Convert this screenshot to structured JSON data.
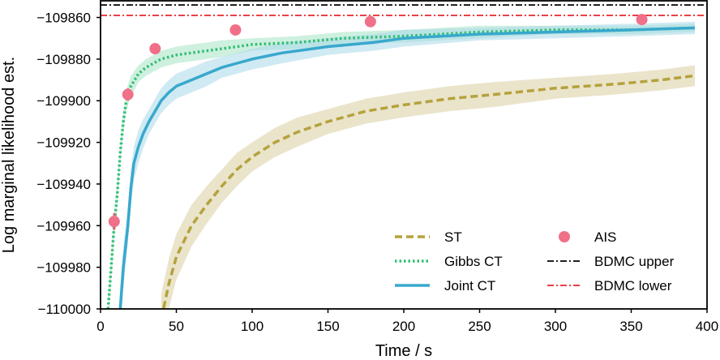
{
  "chart_data": {
    "type": "line",
    "xlabel": "Time / s",
    "ylabel": "Log marginal likelihood est.",
    "xlim": [
      0,
      400
    ],
    "ylim": [
      -110000,
      -109852
    ],
    "x_ticks": [
      0,
      50,
      100,
      150,
      200,
      250,
      300,
      350,
      400
    ],
    "y_ticks": [
      -110000,
      -109980,
      -109960,
      -109940,
      -109920,
      -109900,
      -109880,
      -109860
    ],
    "x_tick_labels": [
      "0",
      "50",
      "100",
      "150",
      "200",
      "250",
      "300",
      "350",
      "400"
    ],
    "y_tick_labels": [
      "−110000",
      "−109980",
      "−109960",
      "−109940",
      "−109920",
      "−109900",
      "−109880",
      "−109860"
    ],
    "grid": false,
    "legend_position": "bottom-right",
    "series": [
      {
        "name": "ST",
        "style": "dashed",
        "color": "#b5a23c",
        "band_color": "#d9ceA0",
        "x": [
          40,
          45,
          50,
          60,
          70,
          80,
          90,
          100,
          115,
          130,
          150,
          175,
          200,
          230,
          260,
          300,
          340,
          370,
          392
        ],
        "y": [
          -110005,
          -109988,
          -109975,
          -109960,
          -109950,
          -109941,
          -109933,
          -109927,
          -109920,
          -109915,
          -109910,
          -109905,
          -109902,
          -109899,
          -109897,
          -109894,
          -109892,
          -109890,
          -109888
        ],
        "band": [
          12,
          12,
          11,
          10,
          9,
          8,
          8,
          7,
          7,
          7,
          6,
          6,
          6,
          6,
          6,
          5,
          5,
          5,
          5
        ]
      },
      {
        "name": "Gibbs CT",
        "style": "dotted",
        "color": "#2fbf71",
        "band_color": "#a6e3c4",
        "x": [
          5,
          7,
          9,
          11,
          13,
          15,
          17,
          20,
          25,
          30,
          40,
          50,
          60,
          80,
          100,
          130,
          160,
          200,
          250,
          300,
          350,
          392
        ],
        "y": [
          -110000,
          -109980,
          -109960,
          -109945,
          -109925,
          -109910,
          -109900,
          -109893,
          -109887,
          -109884,
          -109880,
          -109878,
          -109877,
          -109875,
          -109873,
          -109872,
          -109870,
          -109869,
          -109867,
          -109866,
          -109866,
          -109865
        ],
        "band": [
          6,
          6,
          6,
          6,
          5,
          5,
          5,
          5,
          4,
          4,
          4,
          4,
          4,
          4,
          3,
          3,
          3,
          3,
          3,
          2,
          2,
          2
        ]
      },
      {
        "name": "Joint CT",
        "style": "solid",
        "color": "#38a8cc",
        "band_color": "#a9d9ea",
        "x": [
          13,
          15,
          18,
          20,
          22,
          25,
          28,
          32,
          36,
          40,
          45,
          50,
          60,
          70,
          80,
          90,
          100,
          120,
          150,
          180,
          200,
          250,
          300,
          350,
          392
        ],
        "y": [
          -110000,
          -109980,
          -109960,
          -109942,
          -109930,
          -109922,
          -109916,
          -109910,
          -109905,
          -109900,
          -109896,
          -109893,
          -109890,
          -109887,
          -109884,
          -109882,
          -109880,
          -109877,
          -109874,
          -109872,
          -109870,
          -109868,
          -109867,
          -109866,
          -109865
        ],
        "band": [
          10,
          10,
          9,
          9,
          8,
          8,
          7,
          6,
          6,
          6,
          6,
          6,
          6,
          6,
          5,
          5,
          5,
          5,
          4,
          4,
          4,
          3,
          3,
          3,
          3
        ]
      }
    ],
    "ais": {
      "name": "AIS",
      "color": "#f07088",
      "x": [
        9,
        18,
        36,
        89,
        178,
        357
      ],
      "y": [
        -109958,
        -109897,
        -109875,
        -109866,
        -109862,
        -109861
      ],
      "err": [
        4,
        3,
        2,
        0,
        0,
        0
      ]
    },
    "hlines": [
      {
        "name": "BDMC upper",
        "value": -109854,
        "color": "#000000"
      },
      {
        "name": "BDMC lower",
        "value": -109859,
        "color": "#e8262b"
      }
    ],
    "legend": {
      "st": "ST",
      "gibbs": "Gibbs CT",
      "joint": "Joint CT",
      "ais": "AIS",
      "bdmc_upper": "BDMC upper",
      "bdmc_lower": "BDMC lower"
    }
  }
}
